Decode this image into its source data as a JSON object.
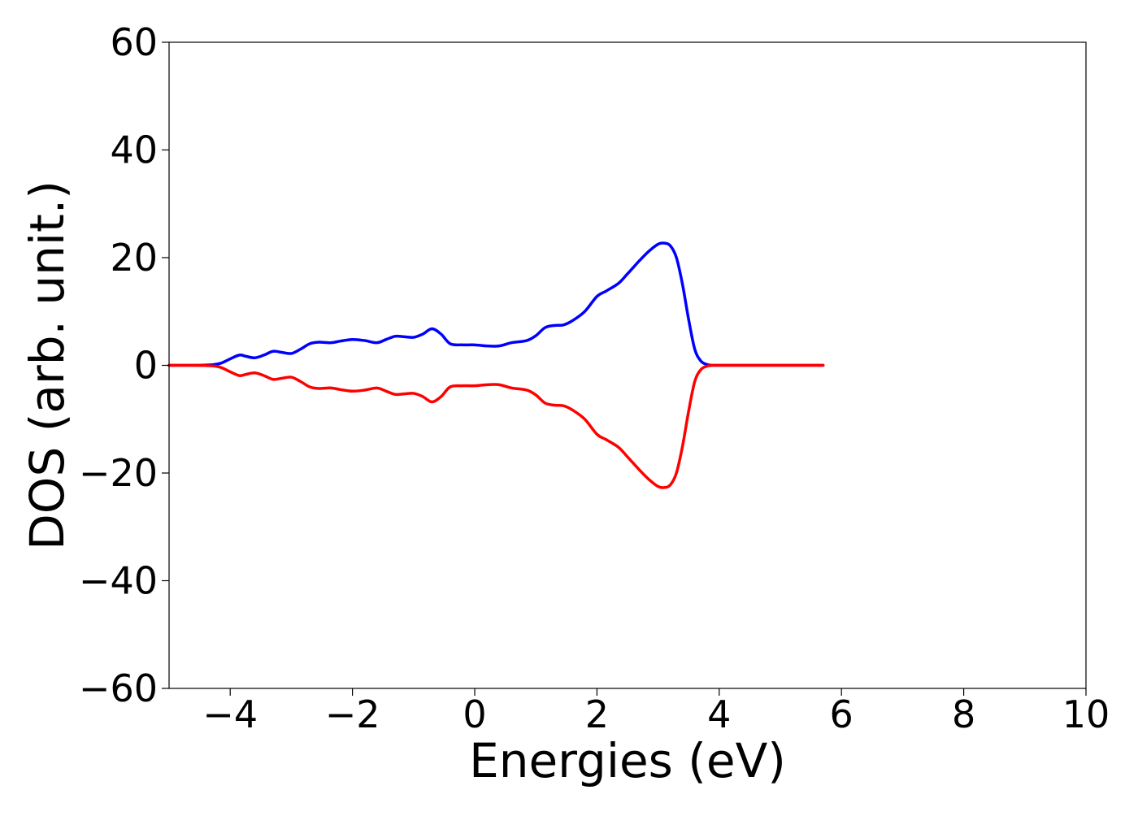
{
  "chart_data": {
    "type": "line",
    "title": "",
    "xlabel": "Energies (eV)",
    "ylabel": "DOS (arb. unit.)",
    "xlim": [
      -5,
      10
    ],
    "ylim": [
      -60,
      60
    ],
    "grid": false,
    "x_ticks": [
      -4,
      -2,
      0,
      2,
      4,
      6,
      8,
      10
    ],
    "x_tick_labels": [
      "−4",
      "−2",
      "0",
      "2",
      "4",
      "6",
      "8",
      "10"
    ],
    "y_ticks": [
      -60,
      -40,
      -20,
      0,
      20,
      40,
      60
    ],
    "y_tick_labels": [
      "−60",
      "−40",
      "−20",
      "0",
      "20",
      "40",
      "60"
    ],
    "series": [
      {
        "color": "#0000ff",
        "x": [
          -5.0,
          -4.6,
          -4.3,
          -4.15,
          -4.0,
          -3.85,
          -3.75,
          -3.6,
          -3.45,
          -3.3,
          -3.15,
          -3.0,
          -2.85,
          -2.7,
          -2.55,
          -2.35,
          -2.2,
          -2.0,
          -1.8,
          -1.6,
          -1.45,
          -1.3,
          -1.15,
          -1.0,
          -0.85,
          -0.7,
          -0.55,
          -0.4,
          -0.2,
          0.0,
          0.2,
          0.4,
          0.6,
          0.85,
          1.0,
          1.15,
          1.3,
          1.45,
          1.6,
          1.8,
          2.0,
          2.15,
          2.35,
          2.5,
          2.7,
          2.85,
          3.0,
          3.1,
          3.2,
          3.3,
          3.4,
          3.5,
          3.6,
          3.7,
          3.8,
          3.9,
          4.0,
          4.5,
          5.0,
          5.7
        ],
        "y": [
          0,
          0,
          0.1,
          0.4,
          1.2,
          1.9,
          1.7,
          1.4,
          1.9,
          2.6,
          2.4,
          2.2,
          3.0,
          4.0,
          4.3,
          4.2,
          4.5,
          4.8,
          4.6,
          4.2,
          4.8,
          5.4,
          5.3,
          5.2,
          5.8,
          6.8,
          5.8,
          4.0,
          3.8,
          3.8,
          3.6,
          3.6,
          4.2,
          4.6,
          5.5,
          7.0,
          7.4,
          7.5,
          8.3,
          10.0,
          12.8,
          13.8,
          15.2,
          17.0,
          19.5,
          21.2,
          22.5,
          22.7,
          22.2,
          20.0,
          15.0,
          8.5,
          3.0,
          0.8,
          0.15,
          0,
          0,
          0,
          0,
          0
        ]
      },
      {
        "color": "#ff0000",
        "x": [
          -5.0,
          -4.6,
          -4.3,
          -4.15,
          -4.0,
          -3.85,
          -3.75,
          -3.6,
          -3.45,
          -3.3,
          -3.15,
          -3.0,
          -2.85,
          -2.7,
          -2.55,
          -2.35,
          -2.2,
          -2.0,
          -1.8,
          -1.6,
          -1.45,
          -1.3,
          -1.15,
          -1.0,
          -0.85,
          -0.7,
          -0.55,
          -0.4,
          -0.2,
          0.0,
          0.2,
          0.4,
          0.6,
          0.85,
          1.0,
          1.15,
          1.3,
          1.45,
          1.6,
          1.8,
          2.0,
          2.15,
          2.35,
          2.5,
          2.7,
          2.85,
          3.0,
          3.1,
          3.2,
          3.3,
          3.4,
          3.5,
          3.6,
          3.7,
          3.8,
          3.9,
          4.0,
          4.5,
          5.0,
          5.7
        ],
        "y": [
          0,
          0,
          -0.1,
          -0.4,
          -1.2,
          -1.9,
          -1.7,
          -1.4,
          -1.9,
          -2.6,
          -2.4,
          -2.2,
          -3.0,
          -4.0,
          -4.3,
          -4.2,
          -4.5,
          -4.8,
          -4.6,
          -4.2,
          -4.8,
          -5.4,
          -5.3,
          -5.2,
          -5.8,
          -6.8,
          -5.8,
          -4.0,
          -3.8,
          -3.8,
          -3.6,
          -3.6,
          -4.2,
          -4.6,
          -5.5,
          -7.0,
          -7.4,
          -7.5,
          -8.3,
          -10.0,
          -12.8,
          -13.8,
          -15.2,
          -17.0,
          -19.5,
          -21.2,
          -22.5,
          -22.7,
          -22.2,
          -20.0,
          -15.0,
          -8.5,
          -3.0,
          -0.8,
          -0.15,
          0,
          0,
          0,
          0,
          0
        ]
      }
    ]
  }
}
